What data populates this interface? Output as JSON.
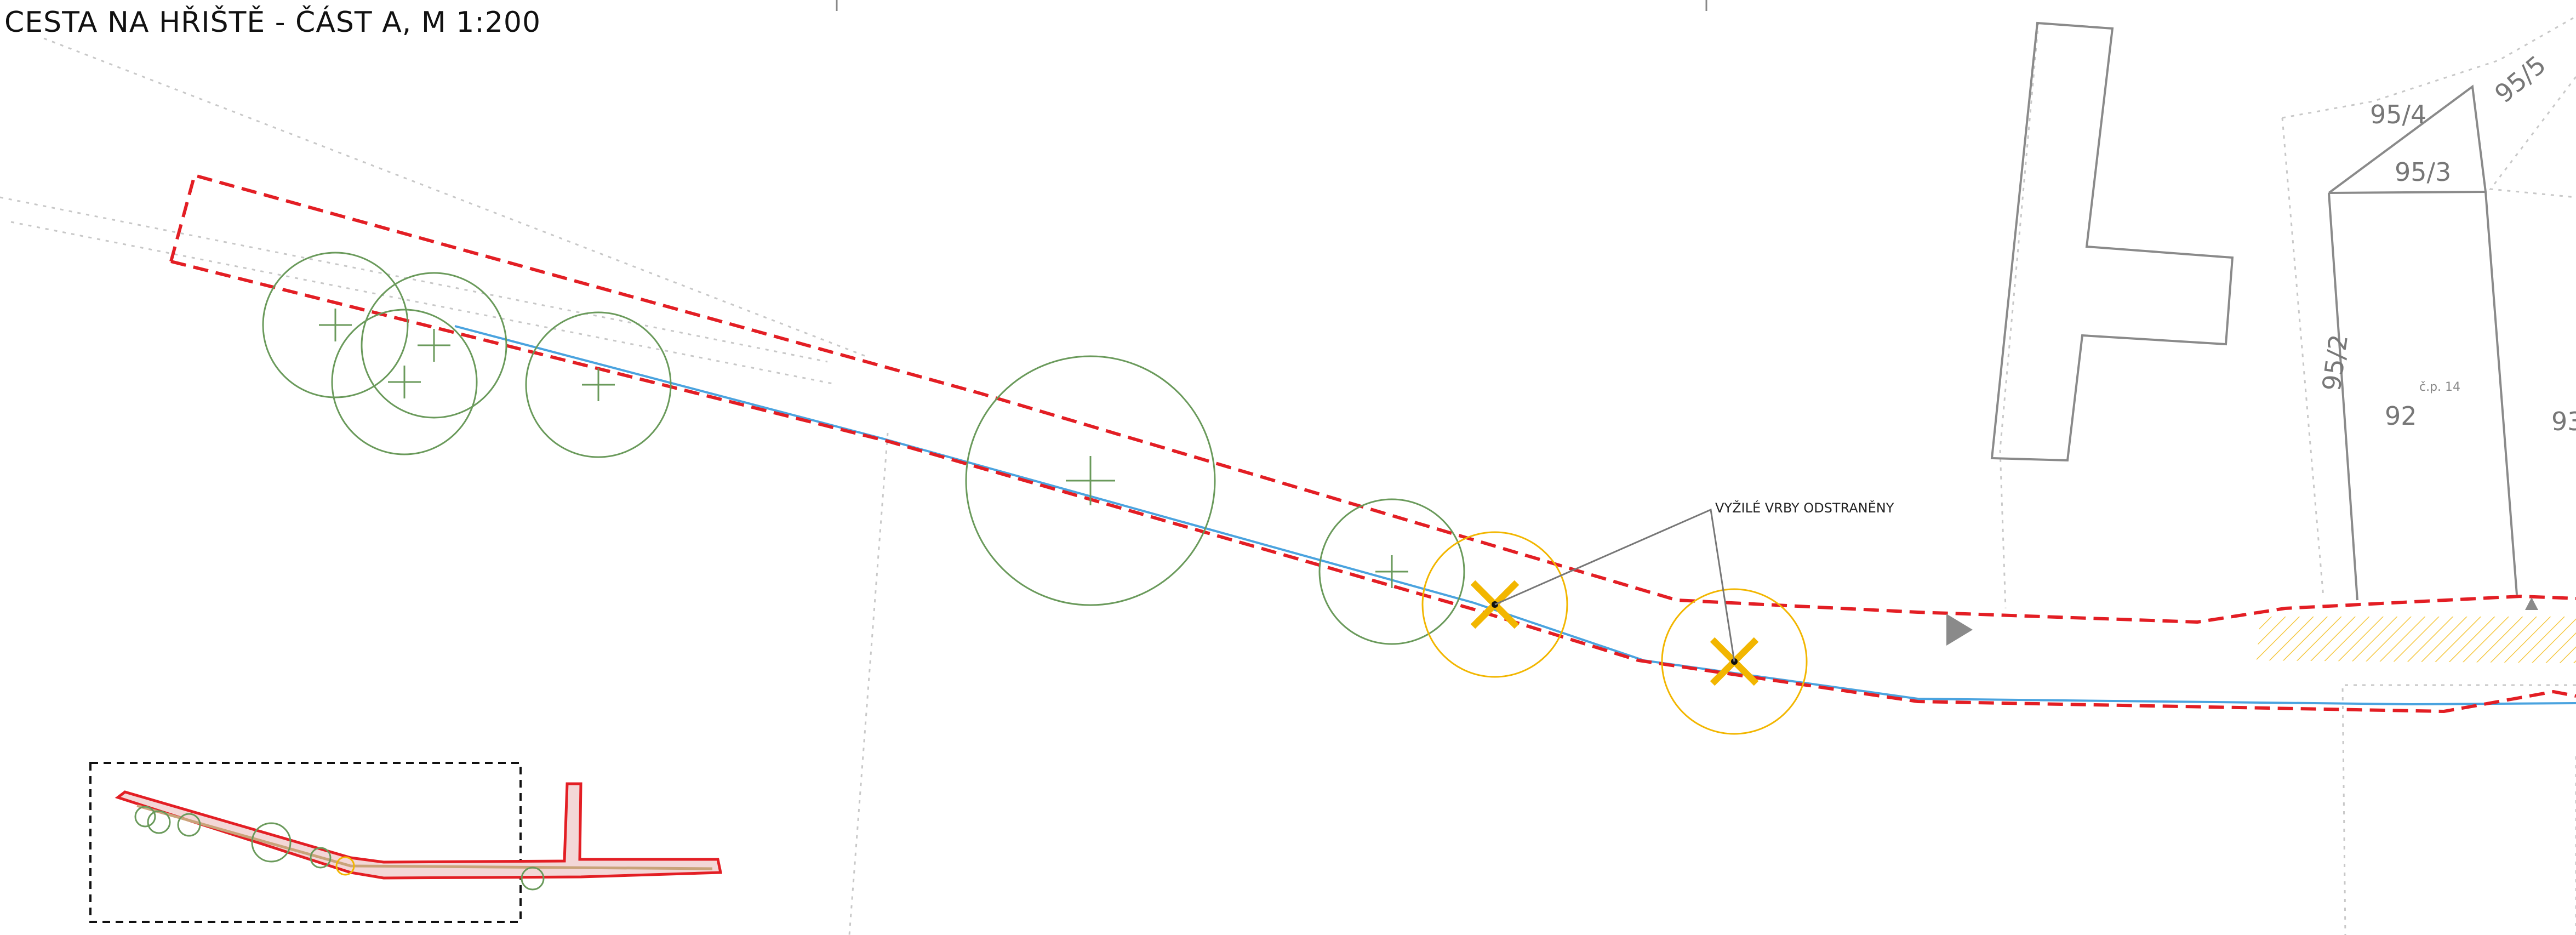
{
  "title": "CESTA NA HŘIŠTĚ - ČÁST A, M 1:200",
  "parcels": [
    {
      "label": "95/4"
    },
    {
      "label": "95/5"
    },
    {
      "label": "95/3"
    },
    {
      "label": "95/2"
    },
    {
      "label": "92"
    },
    {
      "label": "93"
    }
  ],
  "house_number": "č.p. 14",
  "annotation": "VYŽILÉ VRBY ODSTRANĚNY",
  "colors": {
    "boundary": "#e31e24",
    "utility_line": "#4aa3df",
    "tree_existing": "#6a9a5b",
    "tree_removed": "#f2b600",
    "hatch": "#f5c842",
    "linework": "#7f7f7f"
  },
  "icons": {
    "removed_tree": "x-cross-icon",
    "view_direction": "triangle-arrow-icon"
  }
}
